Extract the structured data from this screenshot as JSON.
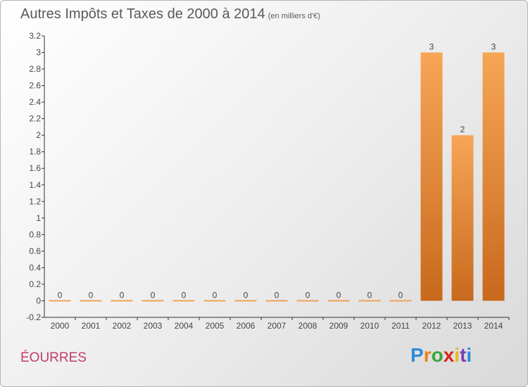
{
  "header": {
    "title": "Autres Impôts et Taxes de 2000 à 2014",
    "unit": "(en milliers d'€)"
  },
  "footer": {
    "commune": "ÉOURRES",
    "logo": "Proxiti"
  },
  "colors": {
    "bar_light": "#f7a656",
    "bar_dark": "#c8691c",
    "commune": "#c43d6b"
  },
  "chart_data": {
    "type": "bar",
    "title": "Autres Impôts et Taxes de 2000 à 2014",
    "subtitle": "(en milliers d'€)",
    "categories": [
      "2000",
      "2001",
      "2002",
      "2003",
      "2004",
      "2005",
      "2006",
      "2007",
      "2008",
      "2009",
      "2010",
      "2011",
      "2012",
      "2013",
      "2014"
    ],
    "values": [
      0,
      0,
      0,
      0,
      0,
      0,
      0,
      0,
      0,
      0,
      0,
      0,
      3,
      2,
      3
    ],
    "data_labels": [
      "0",
      "0",
      "0",
      "0",
      "0",
      "0",
      "0",
      "0",
      "0",
      "0",
      "0",
      "0",
      "3",
      "2",
      "3"
    ],
    "ylim": [
      -0.2,
      3.2
    ],
    "yticks": [
      "-0.2",
      "0",
      "0.2",
      "0.4",
      "0.6",
      "0.8",
      "1",
      "1.2",
      "1.4",
      "1.6",
      "1.8",
      "2",
      "2.2",
      "2.4",
      "2.6",
      "2.8",
      "3",
      "3.2"
    ],
    "grid": false,
    "xlabel": "",
    "ylabel": ""
  }
}
